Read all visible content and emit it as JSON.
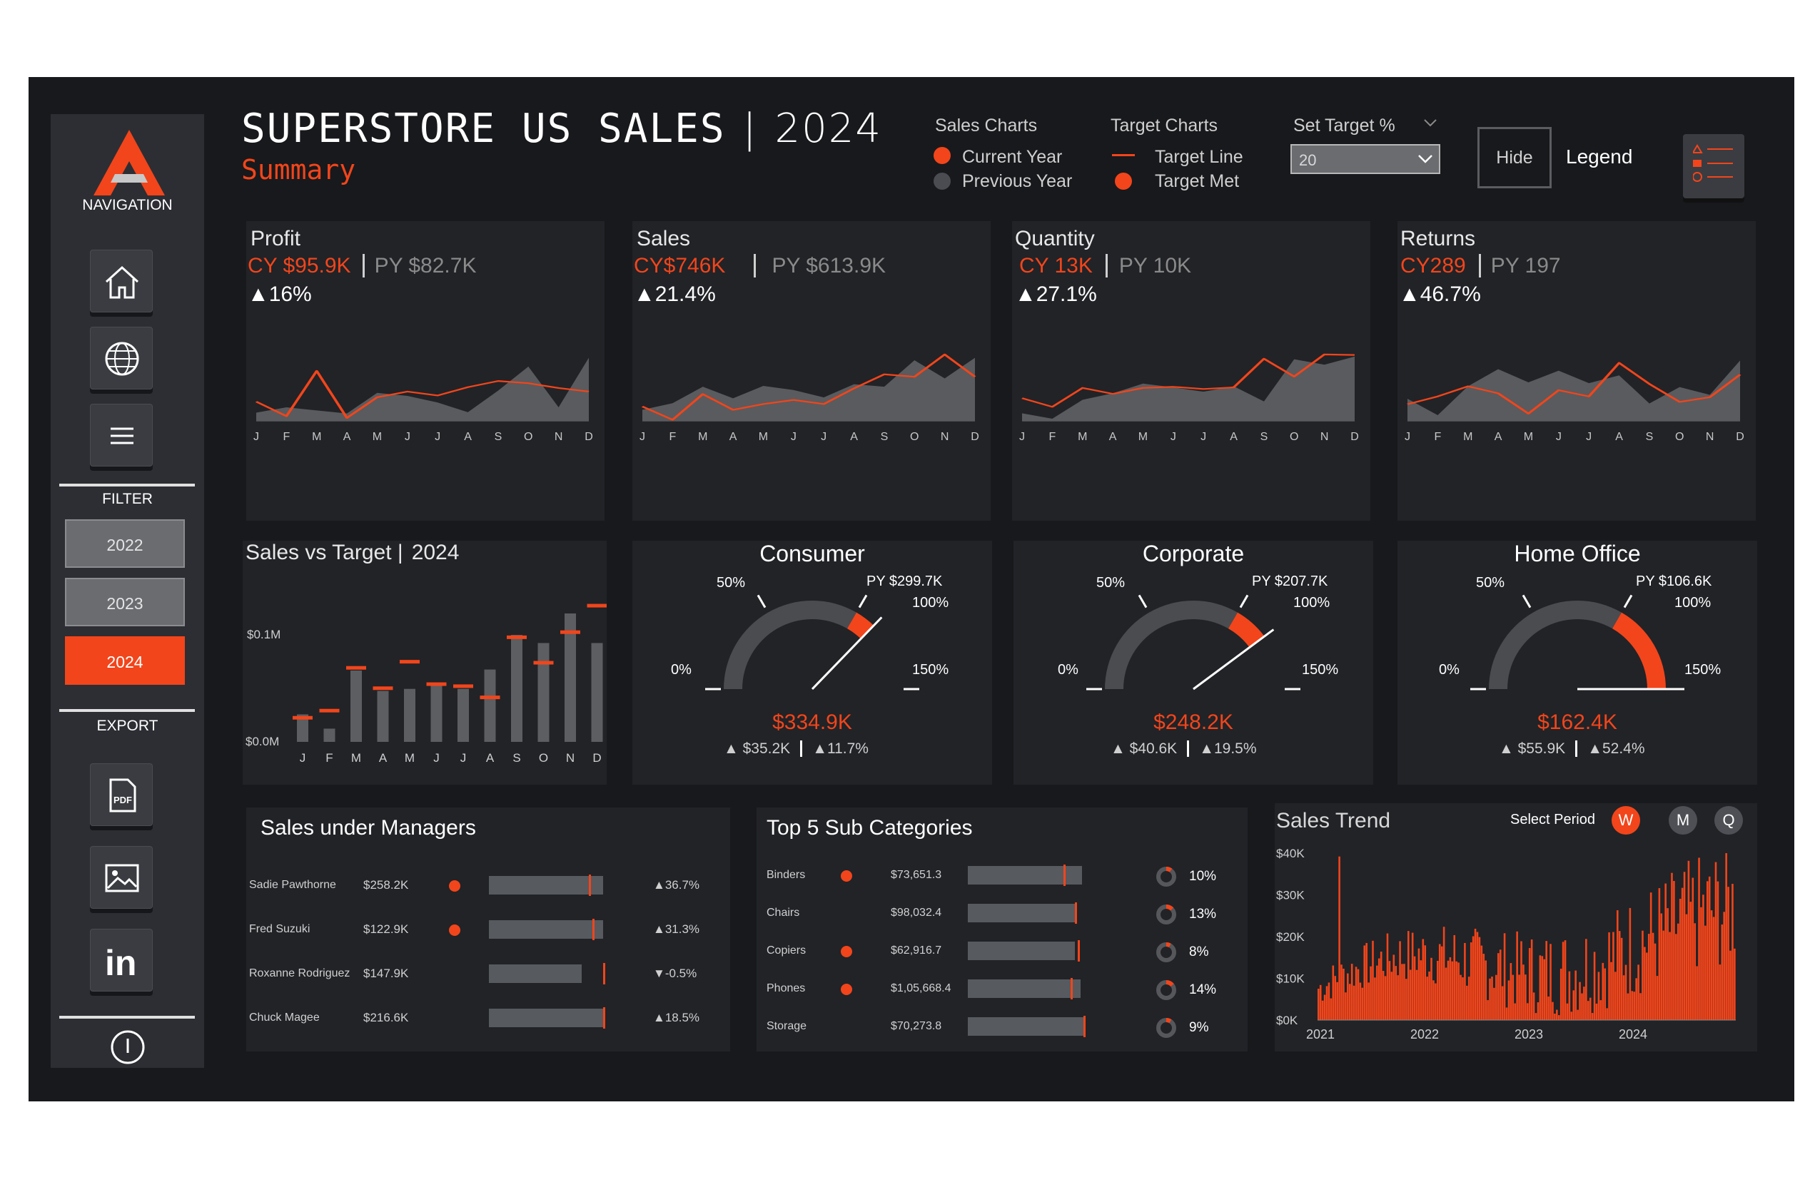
{
  "header": {
    "title": "SUPERSTORE US SALES",
    "divider": "|",
    "year": "2024",
    "subtitle": "Summary"
  },
  "legend": {
    "sales_charts_title": "Sales Charts",
    "current_year": "Current Year",
    "previous_year": "Previous Year",
    "target_charts_title": "Target Charts",
    "target_line": "Target Line",
    "target_met": "Target Met",
    "set_target_label": "Set Target %",
    "set_target_value": "20",
    "hide_button": "Hide",
    "legend_label": "Legend"
  },
  "sidebar": {
    "navigation_label": "NAVIGATION",
    "filter_label": "FILTER",
    "export_label": "EXPORT",
    "years": [
      "2022",
      "2023",
      "2024"
    ],
    "active_year": "2024",
    "nav_icons": [
      "home-icon",
      "globe-icon",
      "menu-icon"
    ],
    "export_icons": [
      "pdf-icon",
      "image-icon",
      "linkedin-icon"
    ],
    "info_icon": "info-icon"
  },
  "kpis": [
    {
      "title": "Profit",
      "cy": "CY $95.9K",
      "py": "PY $82.7K",
      "change": "▲16%"
    },
    {
      "title": "Sales",
      "cy": "CY$746K",
      "py": "PY $613.9K",
      "change": "▲21.4%"
    },
    {
      "title": "Quantity",
      "cy": "CY 13K",
      "py": "PY 10K",
      "change": "▲27.1%"
    },
    {
      "title": "Returns",
      "cy": "CY289",
      "py": "PY 197",
      "change": "▲46.7%"
    }
  ],
  "gauges": [
    {
      "title": "Consumer",
      "py": "PY $299.7K",
      "value": "$334.9K",
      "delta_abs": "▲ $35.2K",
      "delta_pct": "▲11.7%",
      "pct_of_target": 1.117
    },
    {
      "title": "Corporate",
      "py": "PY $207.7K",
      "value": "$248.2K",
      "delta_abs": "▲ $40.6K",
      "delta_pct": "▲19.5%",
      "pct_of_target": 1.195
    },
    {
      "title": "Home Office",
      "py": "PY $106.6K",
      "value": "$162.4K",
      "delta_abs": "▲ $55.9K",
      "delta_pct": "▲52.4%",
      "pct_of_target": 1.524
    }
  ],
  "gauge_ticks": {
    "t0": "0%",
    "t50": "50%",
    "t100": "100%",
    "t150": "150%"
  },
  "sales_vs_target": {
    "title": "Sales vs Target |",
    "year": "2024",
    "y_top": "$0.1M",
    "y_bottom": "$0.0M"
  },
  "managers": {
    "title": "Sales under Managers",
    "rows": [
      {
        "name": "Sadie Pawthorne",
        "value": "$258.2K",
        "met": true,
        "change": "▲36.7%"
      },
      {
        "name": "Fred Suzuki",
        "value": "$122.9K",
        "met": true,
        "change": "▲31.3%"
      },
      {
        "name": "Roxanne Rodriguez",
        "value": "$147.9K",
        "met": false,
        "change": "▼-0.5%"
      },
      {
        "name": "Chuck Magee",
        "value": "$216.6K",
        "met": false,
        "change": "▲18.5%"
      }
    ]
  },
  "subcats": {
    "title": "Top 5 Sub Categories",
    "rows": [
      {
        "name": "Binders",
        "value": "$73,651.3",
        "met": true,
        "share": "10%"
      },
      {
        "name": "Chairs",
        "value": "$98,032.4",
        "met": false,
        "share": "13%"
      },
      {
        "name": "Copiers",
        "value": "$62,916.7",
        "met": true,
        "share": "8%"
      },
      {
        "name": "Phones",
        "value": "$1,05,668.4",
        "met": true,
        "share": "14%"
      },
      {
        "name": "Storage",
        "value": "$70,273.8",
        "met": false,
        "share": "9%"
      }
    ]
  },
  "trend": {
    "title": "Sales Trend",
    "select_label": "Select Period",
    "periods": [
      "W",
      "M",
      "Q"
    ],
    "active_period": "W"
  },
  "chart_data": [
    {
      "type": "area",
      "title": "Profit",
      "categories": [
        "J",
        "F",
        "M",
        "A",
        "M",
        "J",
        "J",
        "A",
        "S",
        "O",
        "N",
        "D"
      ],
      "series": [
        {
          "name": "Current Year",
          "values": [
            4.5,
            1.2,
            11.5,
            0.8,
            5.5,
            6.8,
            5.9,
            7.8,
            9.2,
            8.7,
            7.6,
            6.8
          ]
        },
        {
          "name": "Previous Year",
          "values": [
            2.0,
            3.2,
            2.5,
            1.8,
            6.5,
            5.8,
            4.3,
            2.1,
            7.0,
            12.5,
            3.2,
            14.5
          ]
        }
      ],
      "ylim": [
        0,
        16
      ]
    },
    {
      "type": "area",
      "title": "Sales",
      "categories": [
        "J",
        "F",
        "M",
        "A",
        "M",
        "J",
        "J",
        "A",
        "S",
        "O",
        "N",
        "D"
      ],
      "series": [
        {
          "name": "Current Year",
          "values": [
            18,
            2,
            33,
            14,
            21,
            26,
            21,
            40,
            57,
            54,
            81,
            54
          ]
        },
        {
          "name": "Previous Year",
          "values": [
            14,
            22,
            42,
            28,
            43,
            38,
            29,
            45,
            42,
            74,
            52,
            77
          ]
        }
      ],
      "ylim": [
        0,
        85
      ]
    },
    {
      "type": "area",
      "title": "Quantity",
      "categories": [
        "J",
        "F",
        "M",
        "A",
        "M",
        "J",
        "J",
        "A",
        "S",
        "O",
        "N",
        "D"
      ],
      "series": [
        {
          "name": "Current Year",
          "values": [
            430,
            270,
            620,
            510,
            620,
            640,
            600,
            630,
            1160,
            830,
            1240,
            1230
          ]
        },
        {
          "name": "Previous Year",
          "values": [
            150,
            50,
            400,
            520,
            700,
            630,
            550,
            650,
            370,
            1150,
            1050,
            1200
          ]
        }
      ],
      "ylim": [
        0,
        1300
      ]
    },
    {
      "type": "area",
      "title": "Returns",
      "categories": [
        "J",
        "F",
        "M",
        "A",
        "M",
        "J",
        "J",
        "A",
        "S",
        "O",
        "N",
        "D"
      ],
      "series": [
        {
          "name": "Current Year",
          "values": [
            22,
            32,
            45,
            36,
            10,
            40,
            32,
            75,
            48,
            25,
            31,
            60
          ]
        },
        {
          "name": "Previous Year",
          "values": [
            29,
            8,
            45,
            67,
            50,
            65,
            49,
            59,
            23,
            44,
            34,
            78
          ]
        }
      ],
      "ylim": [
        0,
        90
      ]
    },
    {
      "type": "bar",
      "title": "Sales vs Target",
      "categories": [
        "J",
        "F",
        "M",
        "A",
        "M",
        "J",
        "J",
        "A",
        "S",
        "O",
        "N",
        "D"
      ],
      "series": [
        {
          "name": "Sales",
          "values": [
            0.027,
            0.013,
            0.07,
            0.05,
            0.052,
            0.058,
            0.052,
            0.071,
            0.105,
            0.097,
            0.126,
            0.097
          ]
        },
        {
          "name": "Target",
          "values": [
            0.024,
            0.031,
            0.073,
            0.053,
            0.079,
            0.057,
            0.055,
            0.044,
            0.103,
            0.078,
            0.108,
            0.134
          ]
        }
      ],
      "ylim": [
        0,
        0.14
      ]
    },
    {
      "type": "bar",
      "title": "Sales Trend",
      "x_ticks": [
        "2021",
        "2022",
        "2023",
        "2024"
      ],
      "y_ticks": [
        "$40K",
        "$30K",
        "$20K",
        "$10K",
        "$0K"
      ],
      "ylim": [
        0,
        40
      ]
    }
  ]
}
